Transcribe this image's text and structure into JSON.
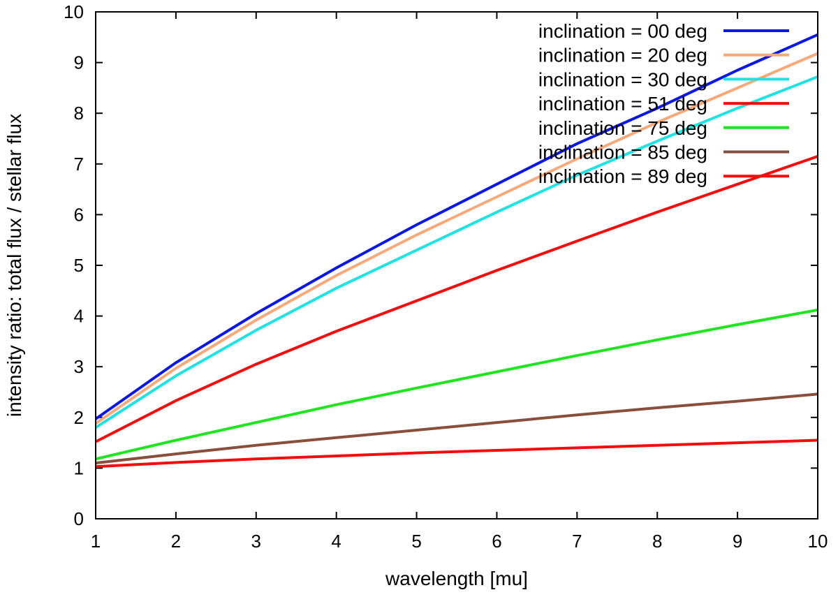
{
  "chart_data": {
    "type": "line",
    "title": "",
    "xlabel": "wavelength [mu]",
    "ylabel": "intensity ratio: total flux / stellar flux",
    "xlim": [
      1,
      10
    ],
    "ylim": [
      0,
      10
    ],
    "xticks": [
      1,
      2,
      3,
      4,
      5,
      6,
      7,
      8,
      9,
      10
    ],
    "yticks": [
      0,
      1,
      2,
      3,
      4,
      5,
      6,
      7,
      8,
      9,
      10
    ],
    "x": [
      1,
      2,
      3,
      4,
      5,
      6,
      7,
      8,
      9,
      10
    ],
    "legend_position": "top-right",
    "grid": false,
    "series": [
      {
        "name": "inclination = 00 deg",
        "color": "#0a17e6",
        "values": [
          1.97,
          3.08,
          4.05,
          4.95,
          5.8,
          6.6,
          7.4,
          8.1,
          8.85,
          9.55
        ]
      },
      {
        "name": "inclination = 20 deg",
        "color": "#f7a97a",
        "values": [
          1.88,
          2.97,
          3.92,
          4.8,
          5.6,
          6.35,
          7.1,
          7.82,
          8.5,
          9.18
        ]
      },
      {
        "name": "inclination = 30 deg",
        "color": "#1ee3e3",
        "values": [
          1.8,
          2.82,
          3.72,
          4.55,
          5.3,
          6.05,
          6.78,
          7.45,
          8.1,
          8.72
        ]
      },
      {
        "name": "inclination = 51 deg",
        "color": "#f50c0c",
        "values": [
          1.52,
          2.33,
          3.05,
          3.7,
          4.3,
          4.9,
          5.48,
          6.05,
          6.6,
          7.15
        ]
      },
      {
        "name": "inclination = 75 deg",
        "color": "#1ee61e",
        "values": [
          1.18,
          1.55,
          1.9,
          2.25,
          2.58,
          2.9,
          3.22,
          3.53,
          3.83,
          4.12
        ]
      },
      {
        "name": "inclination = 85 deg",
        "color": "#8a4f3c",
        "values": [
          1.1,
          1.28,
          1.45,
          1.6,
          1.75,
          1.9,
          2.05,
          2.19,
          2.32,
          2.46
        ]
      },
      {
        "name": "inclination = 89 deg",
        "color": "#f50c0c",
        "values": [
          1.03,
          1.11,
          1.18,
          1.24,
          1.3,
          1.35,
          1.4,
          1.45,
          1.5,
          1.55
        ]
      }
    ]
  }
}
